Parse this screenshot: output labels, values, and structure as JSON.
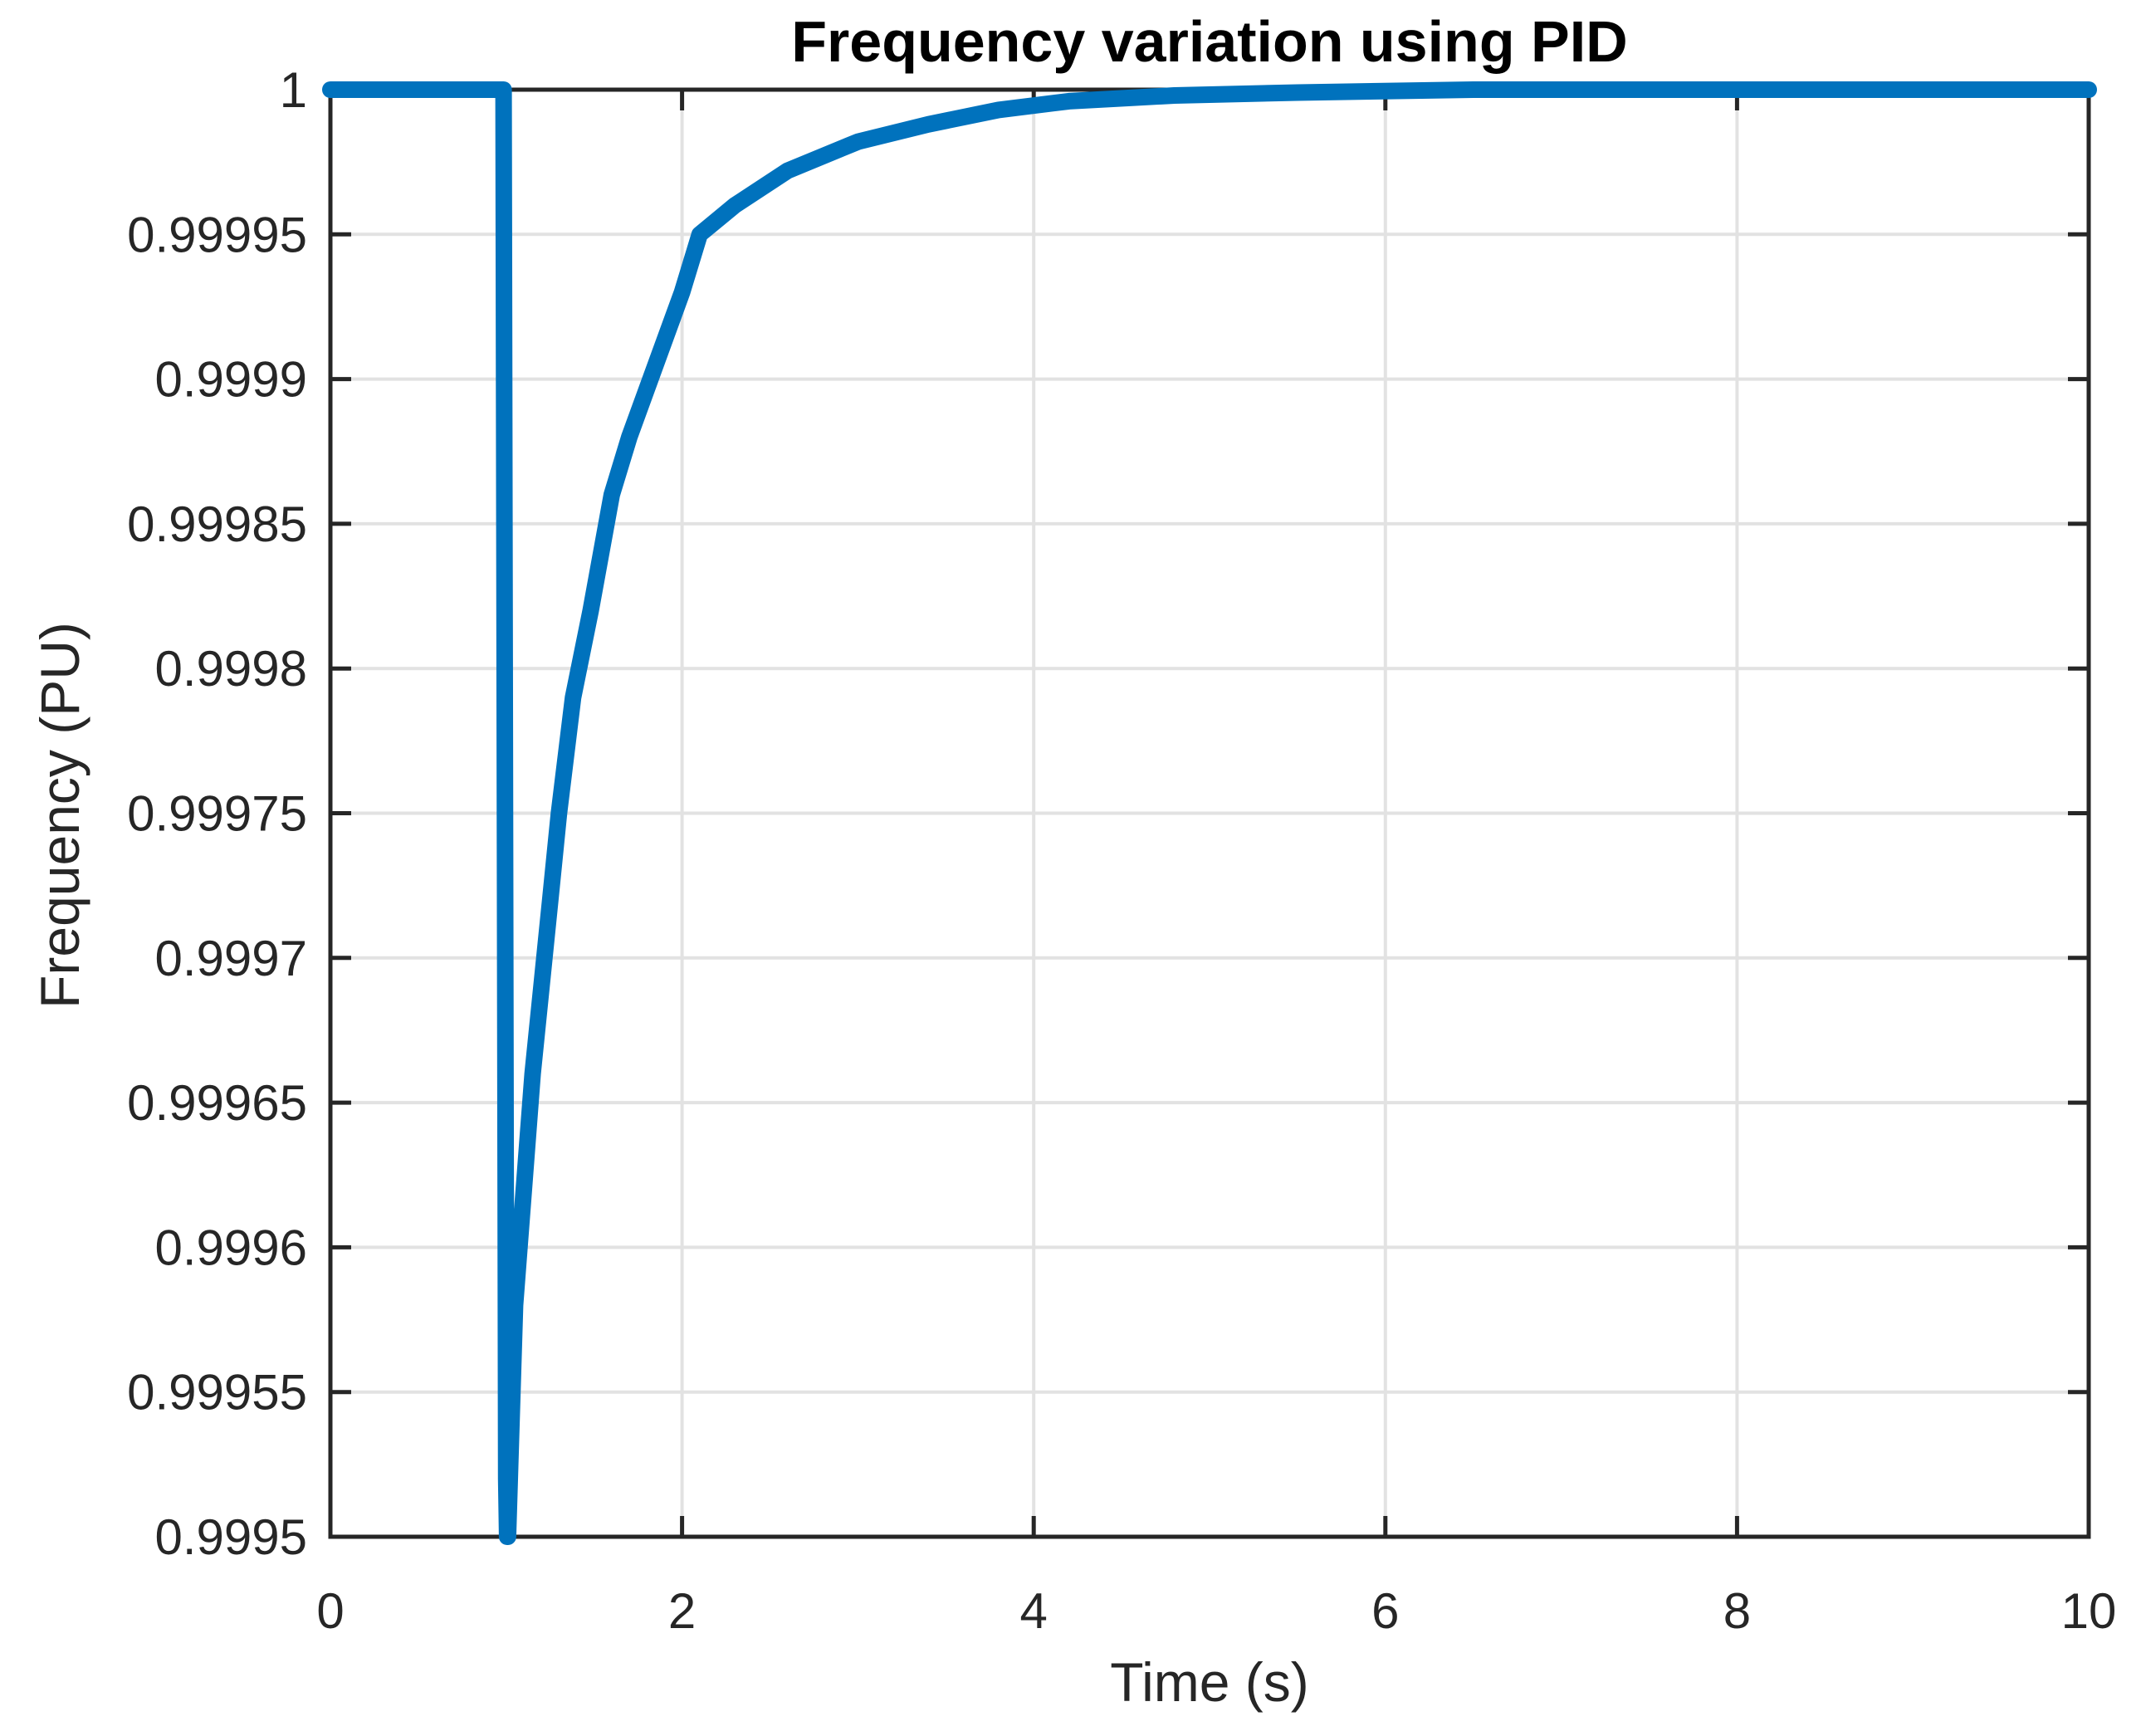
{
  "chart_data": {
    "type": "line",
    "title": "Frequency variation using PID",
    "xlabel": "Time (s)",
    "ylabel": "Frequency (PU)",
    "xlim": [
      0,
      10
    ],
    "ylim": [
      0.9995,
      1
    ],
    "x_ticks": [
      0,
      2,
      4,
      6,
      8,
      10
    ],
    "x_tick_labels": [
      "0",
      "2",
      "4",
      "6",
      "8",
      "10"
    ],
    "y_ticks": [
      0.9995,
      0.99955,
      0.9996,
      0.99965,
      0.9997,
      0.99975,
      0.9998,
      0.99985,
      0.9999,
      0.99995,
      1
    ],
    "y_tick_labels": [
      "0.9995",
      "0.99955",
      "0.9996",
      "0.99965",
      "0.9997",
      "0.99975",
      "0.9998",
      "0.99985",
      "0.9999",
      "0.99995",
      "1"
    ],
    "grid": true,
    "box": true,
    "legend_position": "none",
    "colors": {
      "line": "#0072bd",
      "axis": "#262626",
      "grid": "#e2e2e2",
      "title": "#000000",
      "background": "#ffffff"
    },
    "series": [
      {
        "name": "frequency",
        "color": "#0072bd",
        "points": [
          [
            0.0,
            1.0
          ],
          [
            0.5,
            1.0
          ],
          [
            0.985,
            1.0
          ],
          [
            1.0,
            0.99952
          ],
          [
            1.005,
            0.9995
          ],
          [
            1.01,
            0.9995
          ],
          [
            1.05,
            0.99958
          ],
          [
            1.1,
            0.99962
          ],
          [
            1.15,
            0.99966
          ],
          [
            1.2,
            0.99969
          ],
          [
            1.25,
            0.99972
          ],
          [
            1.3,
            0.99975
          ],
          [
            1.38,
            0.99979
          ],
          [
            1.48,
            0.99982
          ],
          [
            1.6,
            0.99986
          ],
          [
            1.7,
            0.99988
          ],
          [
            1.82,
            0.9999
          ],
          [
            2.0,
            0.99993
          ],
          [
            2.1,
            0.99995
          ],
          [
            2.3,
            0.99996
          ],
          [
            2.6,
            0.999972
          ],
          [
            3.0,
            0.999982
          ],
          [
            3.4,
            0.999988
          ],
          [
            3.8,
            0.999993
          ],
          [
            4.2,
            0.999996
          ],
          [
            4.8,
            0.999998
          ],
          [
            5.5,
            0.999999
          ],
          [
            6.5,
            1.0
          ],
          [
            8.0,
            1.0
          ],
          [
            10.0,
            1.0
          ]
        ]
      }
    ]
  }
}
